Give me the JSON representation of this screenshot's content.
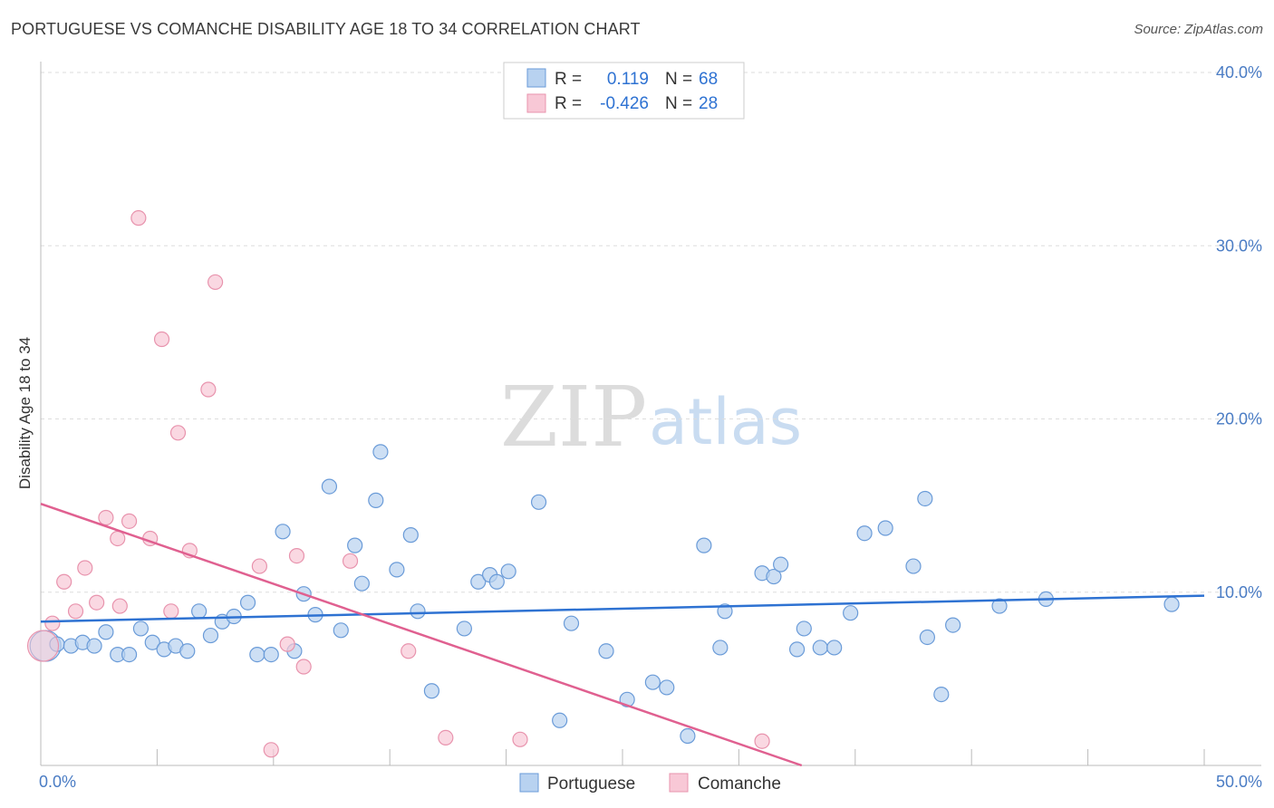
{
  "title": "PORTUGUESE VS COMANCHE DISABILITY AGE 18 TO 34 CORRELATION CHART",
  "source": "Source: ZipAtlas.com",
  "watermark": {
    "zip": "ZIP",
    "atlas": "atlas"
  },
  "colors": {
    "portuguese_fill": "#b8d2f0",
    "portuguese_stroke": "#6a9bd8",
    "portuguese_line": "#2e72d2",
    "comanche_fill": "#f8c8d6",
    "comanche_stroke": "#e893ad",
    "comanche_line": "#e06090",
    "tick_text": "#4a7cc4",
    "grid": "#dddddd"
  },
  "legend_top": [
    {
      "r_label": "R =",
      "r_value": "0.119",
      "n_label": "N =",
      "n_value": "68",
      "series": "Portuguese"
    },
    {
      "r_label": "R =",
      "r_value": "-0.426",
      "n_label": "N =",
      "n_value": "28",
      "series": "Comanche"
    }
  ],
  "legend_bottom": [
    "Portuguese",
    "Comanche"
  ],
  "chart_data": {
    "type": "scatter",
    "title": "PORTUGUESE VS COMANCHE DISABILITY AGE 18 TO 34 CORRELATION CHART",
    "xlabel": "",
    "ylabel": "Disability Age 18 to 34",
    "xlim": [
      0,
      50
    ],
    "ylim": [
      0,
      40
    ],
    "x_tick_labels": [
      "0.0%",
      "50.0%"
    ],
    "y_ticks": [
      10,
      20,
      30,
      40
    ],
    "y_tick_labels": [
      "10.0%",
      "20.0%",
      "30.0%",
      "40.0%"
    ],
    "grid": true,
    "series": [
      {
        "name": "Portuguese",
        "r": 0.119,
        "n": 68,
        "trendline": {
          "x": [
            0,
            50
          ],
          "y": [
            8.3,
            9.8
          ]
        },
        "points": [
          {
            "x": 0.2,
            "y": 6.9,
            "big": true
          },
          {
            "x": 0.7,
            "y": 7.0
          },
          {
            "x": 1.3,
            "y": 6.9
          },
          {
            "x": 1.8,
            "y": 7.1
          },
          {
            "x": 2.3,
            "y": 6.9
          },
          {
            "x": 2.8,
            "y": 7.7
          },
          {
            "x": 3.3,
            "y": 6.4
          },
          {
            "x": 3.8,
            "y": 6.4
          },
          {
            "x": 4.3,
            "y": 7.9
          },
          {
            "x": 4.8,
            "y": 7.1
          },
          {
            "x": 5.3,
            "y": 6.7
          },
          {
            "x": 5.8,
            "y": 6.9
          },
          {
            "x": 6.3,
            "y": 6.6
          },
          {
            "x": 6.8,
            "y": 8.9
          },
          {
            "x": 7.3,
            "y": 7.5
          },
          {
            "x": 7.8,
            "y": 8.3
          },
          {
            "x": 8.3,
            "y": 8.6
          },
          {
            "x": 8.9,
            "y": 9.4
          },
          {
            "x": 9.3,
            "y": 6.4
          },
          {
            "x": 9.9,
            "y": 6.4
          },
          {
            "x": 10.4,
            "y": 13.5
          },
          {
            "x": 10.9,
            "y": 6.6
          },
          {
            "x": 11.3,
            "y": 9.9
          },
          {
            "x": 11.8,
            "y": 8.7
          },
          {
            "x": 12.4,
            "y": 16.1
          },
          {
            "x": 12.9,
            "y": 7.8
          },
          {
            "x": 13.5,
            "y": 12.7
          },
          {
            "x": 13.8,
            "y": 10.5
          },
          {
            "x": 14.4,
            "y": 15.3
          },
          {
            "x": 14.6,
            "y": 18.1
          },
          {
            "x": 15.3,
            "y": 11.3
          },
          {
            "x": 15.9,
            "y": 13.3
          },
          {
            "x": 16.2,
            "y": 8.9
          },
          {
            "x": 16.8,
            "y": 4.3
          },
          {
            "x": 18.2,
            "y": 7.9
          },
          {
            "x": 18.8,
            "y": 10.6
          },
          {
            "x": 19.3,
            "y": 11.0
          },
          {
            "x": 19.6,
            "y": 10.6
          },
          {
            "x": 20.1,
            "y": 11.2
          },
          {
            "x": 21.4,
            "y": 15.2
          },
          {
            "x": 22.3,
            "y": 2.6
          },
          {
            "x": 22.8,
            "y": 8.2
          },
          {
            "x": 24.3,
            "y": 6.6
          },
          {
            "x": 25.2,
            "y": 3.8
          },
          {
            "x": 26.3,
            "y": 4.8
          },
          {
            "x": 26.9,
            "y": 4.5
          },
          {
            "x": 27.8,
            "y": 1.7
          },
          {
            "x": 28.5,
            "y": 12.7
          },
          {
            "x": 29.2,
            "y": 6.8
          },
          {
            "x": 29.4,
            "y": 8.9
          },
          {
            "x": 31.0,
            "y": 11.1
          },
          {
            "x": 31.5,
            "y": 10.9
          },
          {
            "x": 31.8,
            "y": 11.6
          },
          {
            "x": 32.5,
            "y": 6.7
          },
          {
            "x": 32.8,
            "y": 7.9
          },
          {
            "x": 33.5,
            "y": 6.8
          },
          {
            "x": 34.1,
            "y": 6.8
          },
          {
            "x": 34.8,
            "y": 8.8
          },
          {
            "x": 35.4,
            "y": 13.4
          },
          {
            "x": 36.3,
            "y": 13.7
          },
          {
            "x": 37.5,
            "y": 11.5
          },
          {
            "x": 38.0,
            "y": 15.4
          },
          {
            "x": 38.7,
            "y": 4.1
          },
          {
            "x": 38.1,
            "y": 7.4
          },
          {
            "x": 39.2,
            "y": 8.1
          },
          {
            "x": 41.2,
            "y": 9.2
          },
          {
            "x": 43.2,
            "y": 9.6
          },
          {
            "x": 48.6,
            "y": 9.3
          }
        ]
      },
      {
        "name": "Comanche",
        "r": -0.426,
        "n": 28,
        "trendline": {
          "x": [
            0,
            32.7
          ],
          "y": [
            15.1,
            0.0
          ]
        },
        "points": [
          {
            "x": 0.1,
            "y": 6.9,
            "big": true
          },
          {
            "x": 0.5,
            "y": 8.2
          },
          {
            "x": 1.0,
            "y": 10.6
          },
          {
            "x": 1.5,
            "y": 8.9
          },
          {
            "x": 1.9,
            "y": 11.4
          },
          {
            "x": 2.4,
            "y": 9.4
          },
          {
            "x": 2.8,
            "y": 14.3
          },
          {
            "x": 3.3,
            "y": 13.1
          },
          {
            "x": 3.4,
            "y": 9.2
          },
          {
            "x": 3.8,
            "y": 14.1
          },
          {
            "x": 4.2,
            "y": 31.6
          },
          {
            "x": 4.7,
            "y": 13.1
          },
          {
            "x": 5.2,
            "y": 24.6
          },
          {
            "x": 5.6,
            "y": 8.9
          },
          {
            "x": 5.9,
            "y": 19.2
          },
          {
            "x": 6.4,
            "y": 12.4
          },
          {
            "x": 7.2,
            "y": 21.7
          },
          {
            "x": 7.5,
            "y": 27.9
          },
          {
            "x": 9.4,
            "y": 11.5
          },
          {
            "x": 9.9,
            "y": 0.9
          },
          {
            "x": 10.6,
            "y": 7.0
          },
          {
            "x": 11.0,
            "y": 12.1
          },
          {
            "x": 11.3,
            "y": 5.7
          },
          {
            "x": 13.3,
            "y": 11.8
          },
          {
            "x": 15.8,
            "y": 6.6
          },
          {
            "x": 17.4,
            "y": 1.6
          },
          {
            "x": 20.6,
            "y": 1.5
          },
          {
            "x": 31.0,
            "y": 1.4
          }
        ]
      }
    ]
  }
}
